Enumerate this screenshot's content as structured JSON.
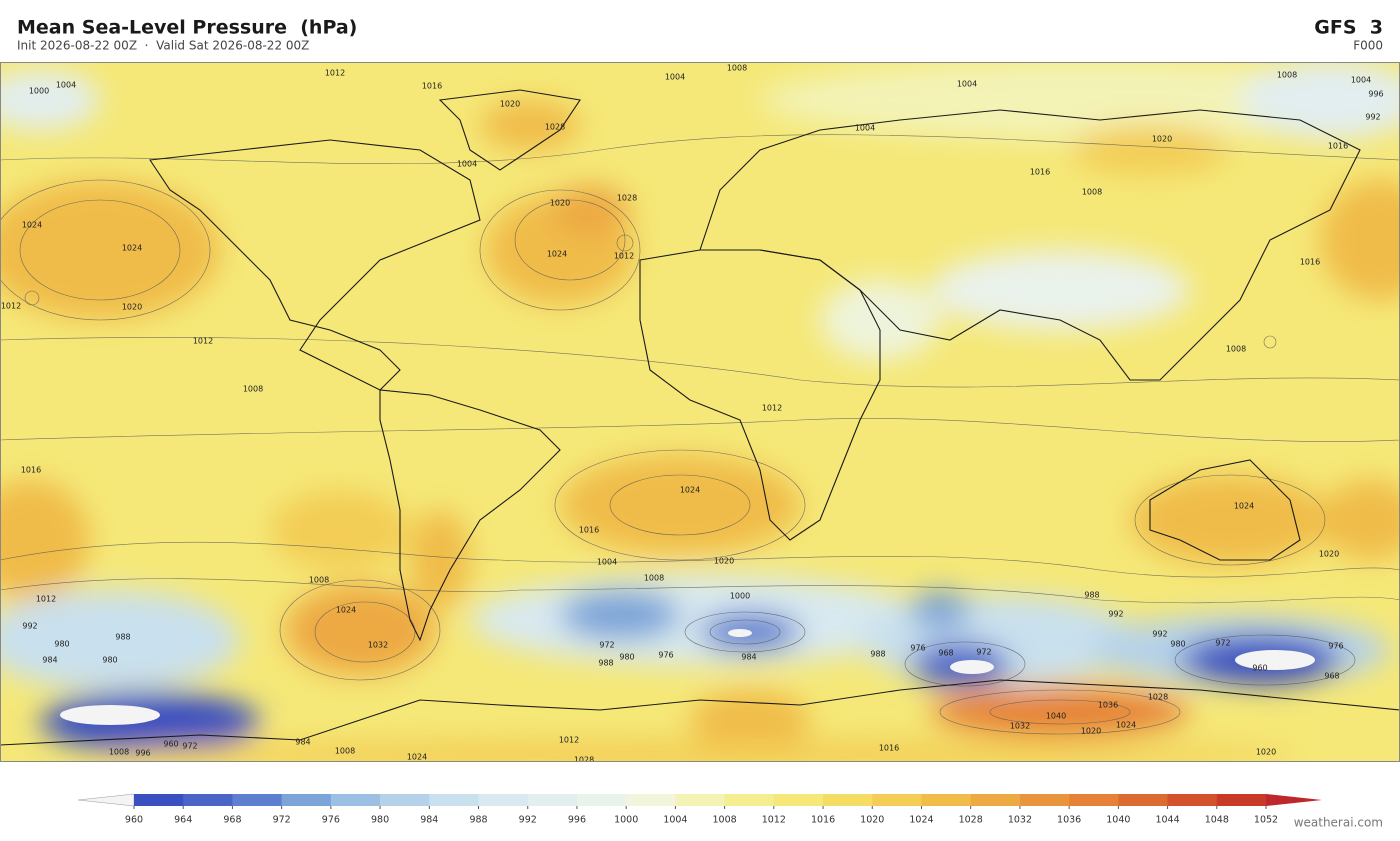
{
  "header": {
    "title": "Mean Sea-Level Pressure  (hPa)",
    "subtitle": "Init 2026-08-22 00Z  ·  Valid Sat 2026-08-22 00Z",
    "model": "GFS  3",
    "forecast_hour": "F000"
  },
  "map": {
    "contour_labels": [
      1012,
      1016,
      1004,
      1008,
      1004,
      1000,
      1020,
      1028,
      1004,
      1008,
      1004,
      996,
      992,
      1004,
      1020,
      1016,
      1004,
      1028,
      1020,
      1024,
      1024,
      1012,
      1024,
      1008,
      1016,
      1016,
      1012,
      1020,
      1012,
      1008,
      1008,
      1012,
      1016,
      1024,
      1016,
      1020,
      1024,
      1020,
      1004,
      1008,
      1000,
      1008,
      1012,
      1024,
      1032,
      988,
      992,
      992,
      980,
      972,
      976,
      992,
      980,
      988,
      984,
      980,
      976,
      980,
      984,
      972,
      988,
      988,
      976,
      968,
      972,
      960,
      968,
      1036,
      1040,
      1032,
      1020,
      1024,
      1028,
      1012,
      1016,
      1020,
      1028,
      1024,
      1008,
      960,
      972,
      984,
      1008,
      996
    ]
  },
  "colorbar": {
    "ticks": [
      960,
      964,
      968,
      972,
      976,
      980,
      984,
      988,
      992,
      996,
      1000,
      1004,
      1008,
      1012,
      1016,
      1020,
      1024,
      1028,
      1032,
      1036,
      1040,
      1044,
      1048,
      1052
    ],
    "colors": [
      "#3a4fc0",
      "#4a64c8",
      "#5f80d0",
      "#7ba4d8",
      "#9cc0e2",
      "#b5d2ea",
      "#c9e0ee",
      "#d8e9f0",
      "#e2eef0",
      "#eaf2ec",
      "#f0f5dc",
      "#f3f3b6",
      "#f5ee90",
      "#f5e878",
      "#f5dd65",
      "#f3cd55",
      "#f0bc4a",
      "#eda942",
      "#e9953d",
      "#e68238",
      "#de6a33",
      "#d3522d",
      "#c83a28"
    ],
    "under_color": "#f4f4f4",
    "over_color": "#c0272d"
  },
  "footer": {
    "credit": "weatherai.com"
  }
}
